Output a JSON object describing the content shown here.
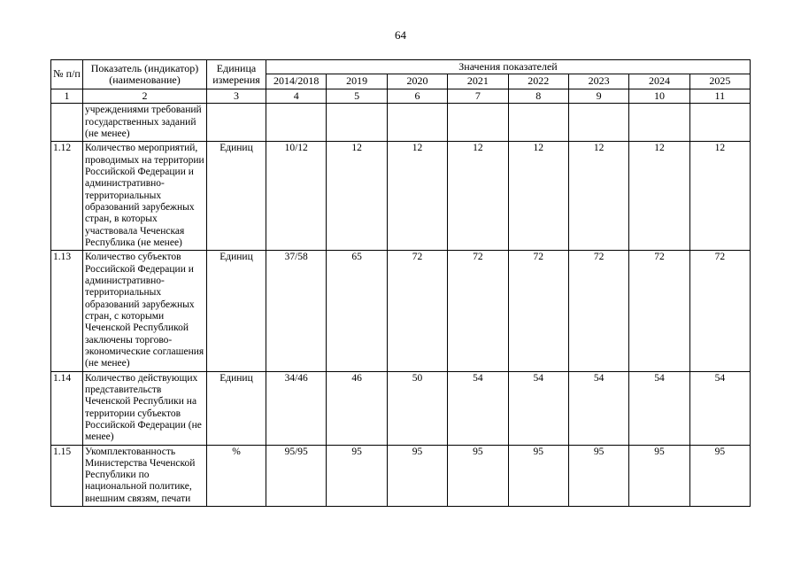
{
  "page": {
    "number": "64"
  },
  "table": {
    "header": {
      "col_num": "№ п/п",
      "col_indicator": "Показатель (индикатор) (наименование)",
      "col_unit": "Единица измерения",
      "col_values_group": "Значения показателей",
      "years": [
        "2014/2018",
        "2019",
        "2020",
        "2021",
        "2022",
        "2023",
        "2024",
        "2025"
      ],
      "index_row": [
        "1",
        "2",
        "3",
        "4",
        "5",
        "6",
        "7",
        "8",
        "9",
        "10",
        "11"
      ]
    },
    "rows": [
      {
        "num": "",
        "name": "учреждениями требований государственных заданий (не менее)",
        "unit": "",
        "values": [
          "",
          "",
          "",
          "",
          "",
          "",
          "",
          ""
        ]
      },
      {
        "num": "1.12",
        "name": "Количество мероприятий, проводимых на территории Российской Федерации и административно-территориальных образований зарубежных стран, в которых участвовала Чеченская Республика (не менее)",
        "unit": "Единиц",
        "values": [
          "10/12",
          "12",
          "12",
          "12",
          "12",
          "12",
          "12",
          "12"
        ]
      },
      {
        "num": "1.13",
        "name": "Количество субъектов Российской Федерации и административно-территориальных образований зарубежных стран, с которыми Чеченской Республикой заключены торгово-экономические соглашения (не менее)",
        "unit": "Единиц",
        "values": [
          "37/58",
          "65",
          "72",
          "72",
          "72",
          "72",
          "72",
          "72"
        ]
      },
      {
        "num": "1.14",
        "name": "Количество действующих представительств Чеченской Республики на территории субъектов Российской Федерации (не менее)",
        "unit": "Единиц",
        "values": [
          "34/46",
          "46",
          "50",
          "54",
          "54",
          "54",
          "54",
          "54"
        ]
      },
      {
        "num": "1.15",
        "name": "Укомплектованность Министерства Чеченской Республики по национальной политике, внешним связям, печати",
        "unit": "%",
        "values": [
          "95/95",
          "95",
          "95",
          "95",
          "95",
          "95",
          "95",
          "95"
        ]
      }
    ]
  }
}
